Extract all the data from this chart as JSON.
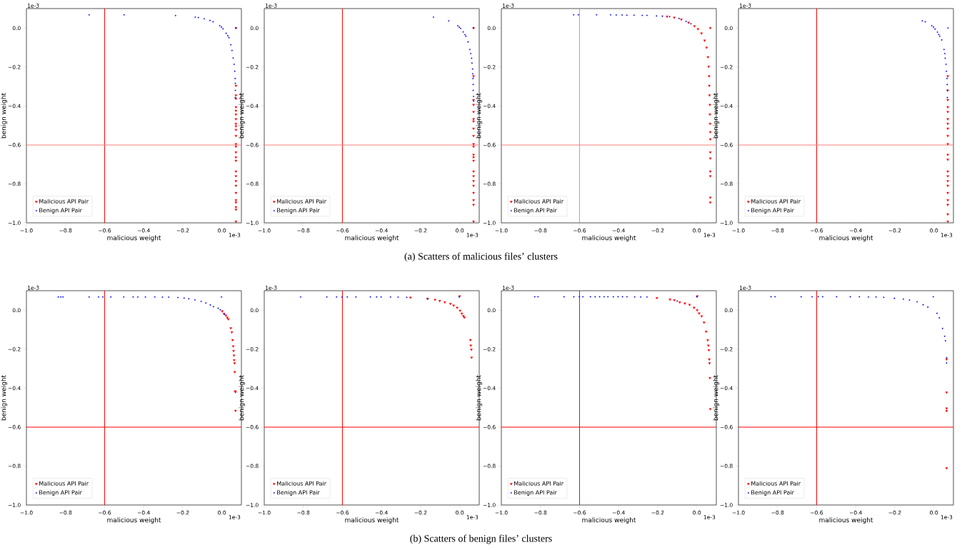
{
  "chart_data": [
    {
      "type": "scatter",
      "xlabel": "malicious weight",
      "ylabel": "benign weight",
      "xlim": [
        -1.0,
        0.1
      ],
      "ylim": [
        -1.0,
        0.1
      ],
      "xticks": [
        {
          "value": -1.0,
          "label": "−1.0"
        },
        {
          "value": -0.8,
          "label": "−0.8"
        },
        {
          "value": -0.6,
          "label": "−0.6"
        },
        {
          "value": -0.4,
          "label": "−0.4"
        },
        {
          "value": -0.2,
          "label": "−0.2"
        },
        {
          "value": 0.0,
          "label": "0.0"
        }
      ],
      "yticks": [
        {
          "value": -1.0,
          "label": "−1.0"
        },
        {
          "value": -0.8,
          "label": "−0.8"
        },
        {
          "value": -0.6,
          "label": "−0.6"
        },
        {
          "value": -0.4,
          "label": "−0.4"
        },
        {
          "value": -0.2,
          "label": "−0.2"
        },
        {
          "value": 0.0,
          "label": "0.0"
        }
      ],
      "legend": "bottom left",
      "series": [
        {
          "name": "Malicious API Pair",
          "color": "#ff0000",
          "marker": "triangle",
          "x": [
            0.072,
            0.072,
            0.072,
            0.072,
            0.072,
            0.072,
            0.072,
            0.072,
            0.072,
            0.072,
            0.072,
            0.072,
            0.072,
            0.072,
            0.072,
            0.072,
            0.072,
            0.072,
            0.072,
            0.072,
            0.072,
            0.072,
            0.072,
            0.072,
            0.072,
            0.072,
            0.072
          ],
          "values": [
            0.0,
            -0.296,
            -0.345,
            -0.363,
            -0.406,
            -0.424,
            -0.443,
            -0.467,
            -0.491,
            -0.504,
            -0.522,
            -0.553,
            -0.595,
            -0.608,
            -0.638,
            -0.663,
            -0.681,
            -0.736,
            -0.76,
            -0.785,
            -0.809,
            -0.846,
            -0.883,
            -0.895,
            -0.919,
            -0.932,
            -0.993
          ]
        },
        {
          "name": "Benign API Pair",
          "color": "#0000ff",
          "marker": "circle",
          "x": [
            -0.679,
            -0.5,
            -0.237,
            -0.136,
            -0.12,
            -0.09,
            -0.061,
            -0.045,
            -0.011,
            -0.002,
            0.006,
            0.022,
            0.03,
            0.036,
            0.046,
            0.052,
            0.058,
            0.063,
            0.066,
            0.068,
            0.069,
            0.069,
            0.069,
            0.072
          ],
          "values": [
            0.068,
            0.068,
            0.064,
            0.056,
            0.054,
            0.048,
            0.039,
            0.032,
            0.012,
            0.005,
            -0.004,
            -0.027,
            -0.039,
            -0.049,
            -0.086,
            -0.115,
            -0.154,
            -0.186,
            -0.222,
            -0.259,
            -0.284,
            -0.32,
            -0.357,
            0.0
          ]
        }
      ],
      "ref_lines": [
        {
          "axis": "x",
          "value": -0.6,
          "color": "#ff0000"
        },
        {
          "axis": "y",
          "value": -0.6,
          "color": "#ff8080"
        }
      ],
      "annotations": [
        "1e-3",
        "1e-3",
        "(a)  Scatters of malicious files’ clusters"
      ]
    },
    {
      "type": "scatter",
      "xlabel": "malicious weight",
      "ylabel": "benign weight",
      "xlim": [
        -1.0,
        0.1
      ],
      "ylim": [
        -1.0,
        0.1
      ],
      "xticks": [
        {
          "value": -1.0,
          "label": "−1.0"
        },
        {
          "value": -0.8,
          "label": "−0.8"
        },
        {
          "value": -0.6,
          "label": "−0.6"
        },
        {
          "value": -0.4,
          "label": "−0.4"
        },
        {
          "value": -0.2,
          "label": "−0.2"
        },
        {
          "value": 0.0,
          "label": "0.0"
        }
      ],
      "yticks": [
        {
          "value": -1.0,
          "label": "−1.0"
        },
        {
          "value": -0.8,
          "label": "−0.8"
        },
        {
          "value": -0.6,
          "label": "−0.6"
        },
        {
          "value": -0.4,
          "label": "−0.4"
        },
        {
          "value": -0.2,
          "label": "−0.2"
        },
        {
          "value": 0.0,
          "label": "0.0"
        }
      ],
      "legend": "bottom left",
      "series": [
        {
          "name": "Malicious API Pair",
          "color": "#ff0000",
          "marker": "triangle",
          "x": [
            0.071,
            0.071,
            0.071,
            0.071,
            0.071,
            0.071,
            0.071,
            0.071,
            0.071,
            0.071,
            0.071,
            0.071,
            0.071,
            0.071,
            0.071,
            0.071,
            0.071,
            0.071,
            0.071,
            0.071,
            0.071,
            0.071
          ],
          "values": [
            0.0,
            -0.247,
            -0.369,
            -0.394,
            -0.43,
            -0.467,
            -0.479,
            -0.516,
            -0.553,
            -0.595,
            -0.608,
            -0.65,
            -0.663,
            -0.681,
            -0.736,
            -0.76,
            -0.785,
            -0.809,
            -0.846,
            -0.883,
            -0.907,
            -0.993
          ]
        },
        {
          "name": "Benign API Pair",
          "color": "#0000ff",
          "marker": "circle",
          "x": [
            -0.134,
            -0.056,
            -0.01,
            -0.002,
            0.005,
            0.018,
            0.027,
            0.032,
            0.043,
            0.052,
            0.057,
            0.061,
            0.063,
            0.066,
            0.067,
            0.068,
            0.069,
            0.069,
            0.071,
            0.071,
            0.071
          ],
          "values": [
            0.056,
            0.037,
            0.012,
            0.005,
            -0.002,
            -0.02,
            -0.034,
            -0.042,
            -0.071,
            -0.11,
            -0.131,
            -0.155,
            -0.18,
            -0.21,
            -0.235,
            -0.259,
            -0.29,
            -0.32,
            -0.351,
            -0.375,
            0.0
          ]
        }
      ],
      "ref_lines": [
        {
          "axis": "x",
          "value": -0.6,
          "color": "#ff0000"
        },
        {
          "axis": "y",
          "value": -0.6,
          "color": "#ff8080"
        }
      ],
      "annotations": [
        "1e-3",
        "1e-3"
      ]
    },
    {
      "type": "scatter",
      "xlabel": "malicious weight",
      "ylabel": "benign weight",
      "xlim": [
        -1.0,
        0.1
      ],
      "ylim": [
        -1.0,
        0.1
      ],
      "xticks": [
        {
          "value": -1.0,
          "label": "−1.0"
        },
        {
          "value": -0.8,
          "label": "−0.8"
        },
        {
          "value": -0.6,
          "label": "−0.6"
        },
        {
          "value": -0.4,
          "label": "−0.4"
        },
        {
          "value": -0.2,
          "label": "−0.2"
        },
        {
          "value": 0.0,
          "label": "0.0"
        }
      ],
      "yticks": [
        {
          "value": -1.0,
          "label": "−1.0"
        },
        {
          "value": -0.8,
          "label": "−0.8"
        },
        {
          "value": -0.6,
          "label": "−0.6"
        },
        {
          "value": -0.4,
          "label": "−0.4"
        },
        {
          "value": -0.2,
          "label": "−0.2"
        },
        {
          "value": 0.0,
          "label": "0.0"
        }
      ],
      "legend": "bottom left",
      "series": [
        {
          "name": "Malicious API Pair",
          "color": "#ff0000",
          "marker": "triangle",
          "x": [
            -0.152,
            -0.115,
            -0.079,
            -0.042,
            -0.012,
            0.006,
            0.024,
            0.04,
            0.05,
            0.057,
            0.061,
            0.063,
            0.064,
            0.065,
            0.067,
            0.067,
            0.068,
            0.069,
            0.069,
            0.069,
            0.069,
            0.069,
            0.069,
            0.069,
            0.069,
            0.069
          ],
          "values": [
            0.059,
            0.054,
            0.044,
            0.028,
            0.01,
            -0.005,
            -0.027,
            -0.064,
            -0.1,
            -0.149,
            -0.198,
            -0.247,
            -0.296,
            -0.345,
            -0.394,
            -0.443,
            -0.491,
            -0.534,
            -0.571,
            -0.638,
            -0.669,
            -0.736,
            -0.76,
            -0.87,
            -0.895,
            0.0
          ]
        },
        {
          "name": "Benign API Pair",
          "color": "#0000ff",
          "marker": "circle",
          "x": [
            -0.63,
            -0.606,
            -0.513,
            -0.441,
            -0.412,
            -0.382,
            -0.358,
            -0.321,
            -0.279,
            -0.255,
            -0.206,
            -0.176,
            -0.139,
            -0.091,
            -0.055,
            -0.03
          ],
          "values": [
            0.068,
            0.068,
            0.068,
            0.068,
            0.067,
            0.067,
            0.066,
            0.066,
            0.065,
            0.065,
            0.062,
            0.061,
            0.059,
            0.049,
            0.034,
            0.022
          ]
        }
      ],
      "ref_lines": [
        {
          "axis": "x",
          "value": -0.6,
          "color": "#ff8080"
        },
        {
          "axis": "y",
          "value": -0.6,
          "color": "#ff8080"
        }
      ],
      "annotations": [
        "1e-3",
        "1e-3"
      ]
    },
    {
      "type": "scatter",
      "xlabel": "malicious weight",
      "ylabel": "benign weight",
      "xlim": [
        -1.0,
        0.1
      ],
      "ylim": [
        -1.0,
        0.1
      ],
      "xticks": [
        {
          "value": -1.0,
          "label": "−1.0"
        },
        {
          "value": -0.8,
          "label": "−0.8"
        },
        {
          "value": -0.6,
          "label": "−0.6"
        },
        {
          "value": -0.4,
          "label": "−0.4"
        },
        {
          "value": -0.2,
          "label": "−0.2"
        },
        {
          "value": 0.0,
          "label": "0.0"
        }
      ],
      "yticks": [
        {
          "value": -1.0,
          "label": "−1.0"
        },
        {
          "value": -0.8,
          "label": "−0.8"
        },
        {
          "value": -0.6,
          "label": "−0.6"
        },
        {
          "value": -0.4,
          "label": "−0.4"
        },
        {
          "value": -0.2,
          "label": "−0.2"
        },
        {
          "value": 0.0,
          "label": "0.0"
        }
      ],
      "legend": "bottom left",
      "series": [
        {
          "name": "Malicious API Pair",
          "color": "#ff0000",
          "marker": "triangle",
          "x": [
            0.071,
            0.071,
            0.071,
            0.071,
            0.071,
            0.071,
            0.071,
            0.071,
            0.071,
            0.071,
            0.071,
            0.071,
            0.071,
            0.071,
            0.071,
            0.071,
            0.071,
            0.071,
            0.071,
            0.071,
            0.071
          ],
          "values": [
            -0.247,
            -0.32,
            -0.369,
            -0.406,
            -0.43,
            -0.467,
            -0.491,
            -0.516,
            -0.553,
            -0.595,
            -0.65,
            -0.675,
            -0.736,
            -0.76,
            -0.785,
            -0.809,
            -0.846,
            -0.883,
            -0.907,
            -0.956,
            -0.993
          ]
        },
        {
          "name": "Benign API Pair",
          "color": "#0000ff",
          "marker": "circle",
          "x": [
            -0.059,
            -0.044,
            -0.011,
            -0.002,
            0.006,
            0.018,
            0.025,
            0.03,
            0.04,
            0.052,
            0.056,
            0.058,
            0.062,
            0.064,
            0.067,
            0.068,
            0.069,
            0.069,
            0.072
          ],
          "values": [
            0.037,
            0.032,
            0.012,
            0.005,
            -0.005,
            -0.021,
            -0.033,
            -0.042,
            -0.061,
            -0.11,
            -0.131,
            -0.155,
            -0.186,
            -0.222,
            -0.259,
            -0.29,
            -0.32,
            -0.357,
            0.0
          ]
        }
      ],
      "ref_lines": [
        {
          "axis": "x",
          "value": -0.6,
          "color": "#ff0000"
        },
        {
          "axis": "y",
          "value": -0.6,
          "color": "#ff8080"
        }
      ],
      "annotations": [
        "1e-3",
        "1e-3"
      ]
    },
    {
      "type": "scatter",
      "xlabel": "malicious weight",
      "ylabel": "benign weight",
      "xlim": [
        -1.0,
        0.1
      ],
      "ylim": [
        -1.0,
        0.1
      ],
      "xticks": [
        {
          "value": -1.0,
          "label": "−1.0"
        },
        {
          "value": -0.8,
          "label": "−0.8"
        },
        {
          "value": -0.6,
          "label": "−0.6"
        },
        {
          "value": -0.4,
          "label": "−0.4"
        },
        {
          "value": -0.2,
          "label": "−0.2"
        },
        {
          "value": 0.0,
          "label": "0.0"
        }
      ],
      "yticks": [
        {
          "value": -1.0,
          "label": "−1.0"
        },
        {
          "value": -0.8,
          "label": "−0.8"
        },
        {
          "value": -0.6,
          "label": "−0.6"
        },
        {
          "value": -0.4,
          "label": "−0.4"
        },
        {
          "value": -0.2,
          "label": "−0.2"
        },
        {
          "value": 0.0,
          "label": "0.0"
        }
      ],
      "legend": "bottom left",
      "series": [
        {
          "name": "Malicious API Pair",
          "color": "#ff0000",
          "marker": "triangle",
          "x": [
            0.002,
            0.011,
            0.021,
            0.028,
            0.033,
            0.046,
            0.051,
            0.055,
            0.058,
            0.06,
            0.062,
            0.063,
            0.065,
            0.066,
            0.068,
            0.07,
            0.07
          ],
          "values": [
            -0.005,
            -0.018,
            -0.027,
            -0.038,
            -0.046,
            -0.092,
            -0.113,
            -0.153,
            -0.185,
            -0.209,
            -0.232,
            -0.256,
            -0.272,
            -0.317,
            -0.416,
            -0.42,
            -0.516
          ]
        },
        {
          "name": "Benign API Pair",
          "color": "#0000ff",
          "marker": "circle",
          "x": [
            -0.837,
            -0.824,
            -0.813,
            -0.679,
            -0.631,
            -0.609,
            -0.568,
            -0.502,
            -0.454,
            -0.43,
            -0.391,
            -0.343,
            -0.304,
            -0.272,
            -0.225,
            -0.193,
            -0.169,
            -0.138,
            -0.106,
            -0.082,
            -0.059,
            -0.043,
            -0.019,
            -0.008,
            -0.002,
            0.013
          ],
          "values": [
            0.068,
            0.068,
            0.068,
            0.068,
            0.068,
            0.068,
            0.068,
            0.068,
            0.068,
            0.068,
            0.068,
            0.068,
            0.067,
            0.067,
            0.065,
            0.062,
            0.059,
            0.053,
            0.045,
            0.037,
            0.027,
            0.018,
            0.01,
            0.002,
            0.068,
            -0.022
          ]
        }
      ],
      "ref_lines": [
        {
          "axis": "x",
          "value": -0.6,
          "color": "#ff0000"
        },
        {
          "axis": "y",
          "value": -0.6,
          "color": "#ff0000"
        }
      ],
      "annotations": [
        "1e-3",
        "1e-3",
        "(b)  Scatters of benign files’ clusters"
      ]
    },
    {
      "type": "scatter",
      "xlabel": "malicious weight",
      "ylabel": "benign weight",
      "xlim": [
        -1.0,
        0.1
      ],
      "ylim": [
        -1.0,
        0.1
      ],
      "xticks": [
        {
          "value": -1.0,
          "label": "−1.0"
        },
        {
          "value": -0.8,
          "label": "−0.8"
        },
        {
          "value": -0.6,
          "label": "−0.6"
        },
        {
          "value": -0.4,
          "label": "−0.4"
        },
        {
          "value": -0.2,
          "label": "−0.2"
        },
        {
          "value": 0.0,
          "label": "0.0"
        }
      ],
      "yticks": [
        {
          "value": -1.0,
          "label": "−1.0"
        },
        {
          "value": -0.8,
          "label": "−0.8"
        },
        {
          "value": -0.6,
          "label": "−0.6"
        },
        {
          "value": -0.4,
          "label": "−0.4"
        },
        {
          "value": -0.2,
          "label": "−0.2"
        },
        {
          "value": 0.0,
          "label": "0.0"
        }
      ],
      "legend": "bottom left",
      "series": [
        {
          "name": "Malicious API Pair",
          "color": "#ff0000",
          "marker": "triangle",
          "x": [
            -0.252,
            -0.165,
            -0.126,
            -0.102,
            -0.076,
            -0.047,
            -0.031,
            -0.013,
            0.002,
            0.011,
            0.019,
            0.024,
            0.055,
            0.057,
            0.06,
            0.061,
            0.0
          ],
          "values": [
            0.065,
            0.059,
            0.054,
            0.048,
            0.041,
            0.033,
            0.024,
            0.013,
            -0.002,
            -0.017,
            -0.03,
            -0.037,
            -0.153,
            -0.181,
            -0.202,
            -0.243,
            0.072
          ]
        },
        {
          "name": "Benign API Pair",
          "color": "#0000ff",
          "marker": "circle",
          "x": [
            -0.814,
            -0.68,
            -0.63,
            -0.602,
            -0.575,
            -0.531,
            -0.457,
            -0.425,
            -0.402,
            -0.354,
            -0.315,
            -0.271,
            -0.162,
            -0.003
          ],
          "values": [
            0.068,
            0.068,
            0.068,
            0.068,
            0.068,
            0.068,
            0.068,
            0.068,
            0.068,
            0.068,
            0.067,
            0.066,
            0.059,
            0.068
          ]
        }
      ],
      "ref_lines": [
        {
          "axis": "x",
          "value": -0.6,
          "color": "#ff0000"
        },
        {
          "axis": "y",
          "value": -0.6,
          "color": "#ff0000"
        }
      ],
      "annotations": [
        "1e-3",
        "1e-3"
      ]
    },
    {
      "type": "scatter",
      "xlabel": "malicious weight",
      "ylabel": "benign weight",
      "xlim": [
        -1.0,
        0.1
      ],
      "ylim": [
        -1.0,
        0.1
      ],
      "xticks": [
        {
          "value": -1.0,
          "label": "−1.0"
        },
        {
          "value": -0.8,
          "label": "−0.8"
        },
        {
          "value": -0.6,
          "label": "−0.6"
        },
        {
          "value": -0.4,
          "label": "−0.4"
        },
        {
          "value": -0.2,
          "label": "−0.2"
        },
        {
          "value": 0.0,
          "label": "0.0"
        }
      ],
      "yticks": [
        {
          "value": -1.0,
          "label": "−1.0"
        },
        {
          "value": -0.8,
          "label": "−0.8"
        },
        {
          "value": -0.6,
          "label": "−0.6"
        },
        {
          "value": -0.4,
          "label": "−0.4"
        },
        {
          "value": -0.2,
          "label": "−0.2"
        },
        {
          "value": 0.0,
          "label": "0.0"
        }
      ],
      "legend": "bottom left",
      "series": [
        {
          "name": "Malicious API Pair",
          "color": "#ff0000",
          "marker": "triangle",
          "x": [
            -0.204,
            -0.137,
            -0.115,
            -0.087,
            -0.061,
            -0.037,
            -0.014,
            0.002,
            0.012,
            0.025,
            0.037,
            0.048,
            0.056,
            0.059,
            0.062,
            0.064,
            0.065,
            0.067,
            0.069,
            0.003
          ],
          "values": [
            0.063,
            0.055,
            0.052,
            0.041,
            0.035,
            0.028,
            0.013,
            0.0,
            -0.016,
            -0.031,
            -0.063,
            -0.11,
            -0.154,
            -0.181,
            -0.205,
            -0.252,
            -0.272,
            -0.348,
            -0.507,
            0.072
          ]
        },
        {
          "name": "Benign API Pair",
          "color": "#0000ff",
          "marker": "circle",
          "x": [
            -0.829,
            -0.813,
            -0.679,
            -0.629,
            -0.601,
            -0.583,
            -0.544,
            -0.52,
            -0.497,
            -0.474,
            -0.455,
            -0.427,
            -0.403,
            -0.38,
            -0.357,
            -0.318,
            -0.287,
            -0.255,
            -0.1,
            0.0
          ],
          "values": [
            0.069,
            0.069,
            0.069,
            0.069,
            0.069,
            0.069,
            0.069,
            0.069,
            0.069,
            0.069,
            0.069,
            0.069,
            0.069,
            0.069,
            0.069,
            0.068,
            0.068,
            0.068,
            0.047,
            0.069
          ]
        }
      ],
      "ref_lines": [
        {
          "axis": "x",
          "value": -0.6,
          "color": "#ff0000"
        },
        {
          "axis": "y",
          "value": -0.6,
          "color": "#ff0000"
        }
      ],
      "annotations": [
        "1e-3",
        "1e-3"
      ]
    },
    {
      "type": "scatter",
      "xlabel": "malicious weight",
      "ylabel": "benign weight",
      "xlim": [
        -1.0,
        0.1
      ],
      "ylim": [
        -1.0,
        0.1
      ],
      "xticks": [
        {
          "value": -1.0,
          "label": "−1.0"
        },
        {
          "value": -0.8,
          "label": "−0.8"
        },
        {
          "value": -0.6,
          "label": "−0.6"
        },
        {
          "value": -0.4,
          "label": "−0.4"
        },
        {
          "value": -0.2,
          "label": "−0.2"
        },
        {
          "value": 0.0,
          "label": "0.0"
        }
      ],
      "yticks": [
        {
          "value": -1.0,
          "label": "−1.0"
        },
        {
          "value": -0.8,
          "label": "−0.8"
        },
        {
          "value": -0.6,
          "label": "−0.6"
        },
        {
          "value": -0.4,
          "label": "−0.4"
        },
        {
          "value": -0.2,
          "label": "−0.2"
        },
        {
          "value": 0.0,
          "label": "0.0"
        }
      ],
      "legend": "bottom left",
      "series": [
        {
          "name": "Malicious API Pair",
          "color": "#ff0000",
          "marker": "triangle",
          "x": [
            0.065,
            0.065,
            0.065,
            0.065,
            0.065
          ],
          "values": [
            -0.252,
            -0.422,
            -0.504,
            -0.517,
            -0.811
          ]
        },
        {
          "name": "Benign API Pair",
          "color": "#0000ff",
          "marker": "circle",
          "x": [
            -0.833,
            -0.813,
            -0.679,
            -0.623,
            -0.592,
            -0.569,
            -0.498,
            -0.428,
            -0.381,
            -0.335,
            -0.296,
            -0.257,
            -0.202,
            -0.156,
            -0.125,
            -0.086,
            -0.055,
            -0.031,
            -0.003,
            0.016,
            0.028,
            0.044,
            0.055,
            0.059,
            0.065,
            0.065
          ],
          "values": [
            0.069,
            0.069,
            0.069,
            0.069,
            0.069,
            0.069,
            0.069,
            0.069,
            0.069,
            0.068,
            0.068,
            0.066,
            0.061,
            0.057,
            0.052,
            0.043,
            0.028,
            0.016,
            0.069,
            -0.016,
            -0.039,
            -0.094,
            -0.134,
            -0.157,
            -0.244,
            -0.271
          ]
        }
      ],
      "ref_lines": [
        {
          "axis": "x",
          "value": -0.6,
          "color": "#ff0000"
        },
        {
          "axis": "y",
          "value": -0.6,
          "color": "#ff0000"
        }
      ],
      "annotations": [
        "1e-3",
        "1e-3"
      ]
    }
  ]
}
